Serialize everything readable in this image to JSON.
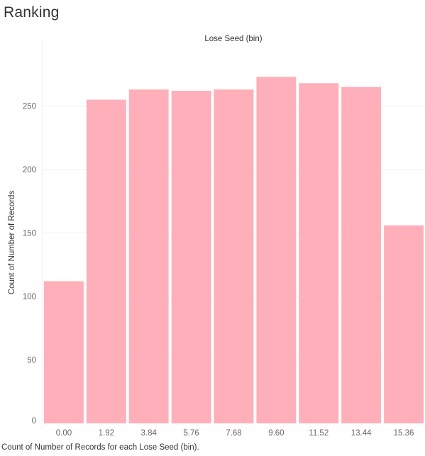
{
  "sheet": {
    "title": "Ranking",
    "caption": "Count of Number of Records for each Lose Seed (bin)."
  },
  "chart_data": {
    "type": "bar",
    "title": "Lose Seed (bin)",
    "xlabel": "",
    "ylabel": "Count of Number of Records",
    "categories": [
      "0.00",
      "1.92",
      "3.84",
      "5.76",
      "7.68",
      "9.60",
      "11.52",
      "13.44",
      "15.36"
    ],
    "values": [
      112,
      255,
      263,
      262,
      263,
      273,
      268,
      265,
      156
    ],
    "ylim": [
      0,
      300
    ],
    "yticks": [
      0,
      50,
      100,
      150,
      200,
      250
    ],
    "grid": true,
    "bar_color": "#ffafb9",
    "gridline_color": "#efefef"
  }
}
